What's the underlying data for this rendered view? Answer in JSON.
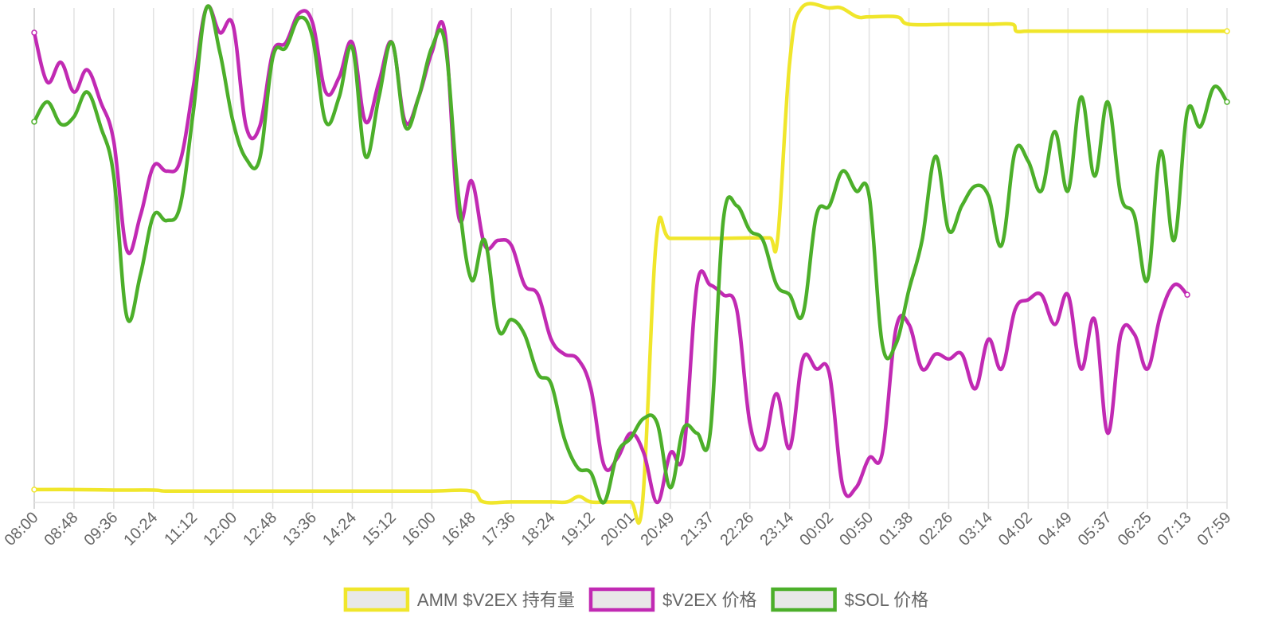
{
  "chart_data": {
    "type": "line",
    "title": "",
    "xlabel": "",
    "ylabel": "",
    "grid": true,
    "legend_position": "bottom",
    "y_axis_labels_shown": false,
    "x_tick_labels": [
      "08:00",
      "08:48",
      "09:36",
      "10:24",
      "11:12",
      "12:00",
      "12:48",
      "13:36",
      "14:24",
      "15:12",
      "16:00",
      "16:48",
      "17:36",
      "18:24",
      "19:12",
      "20:01",
      "20:49",
      "21:37",
      "22:26",
      "23:14",
      "00:02",
      "00:50",
      "01:38",
      "02:26",
      "03:14",
      "04:02",
      "04:49",
      "05:37",
      "06:25",
      "07:13",
      "07:59"
    ],
    "x_range": [
      0,
      30
    ],
    "y_range": [
      0,
      100
    ],
    "series": [
      {
        "name": "AMM $V2EX 持有量",
        "color": "#f0e62b",
        "points": [
          [
            0,
            2.6
          ],
          [
            1,
            2.6
          ],
          [
            2,
            2.5
          ],
          [
            3,
            2.5
          ],
          [
            3.3,
            2.3
          ],
          [
            4,
            2.3
          ],
          [
            5,
            2.3
          ],
          [
            6,
            2.3
          ],
          [
            7,
            2.3
          ],
          [
            8,
            2.3
          ],
          [
            9,
            2.3
          ],
          [
            10,
            2.3
          ],
          [
            11,
            2.3
          ],
          [
            11.3,
            0.1
          ],
          [
            12,
            0.1
          ],
          [
            13,
            0.1
          ],
          [
            13.4,
            0.1
          ],
          [
            13.7,
            1.2
          ],
          [
            14,
            0.1
          ],
          [
            14.5,
            0.1
          ],
          [
            15,
            0.1
          ],
          [
            15.3,
            0.1
          ],
          [
            15.65,
            53.4
          ],
          [
            16,
            53.4
          ],
          [
            17,
            53.4
          ],
          [
            17.3,
            53.4
          ],
          [
            18,
            53.5
          ],
          [
            18.5,
            53.5
          ],
          [
            18.7,
            53.5
          ],
          [
            19,
            89
          ],
          [
            19.3,
            100
          ],
          [
            20,
            100
          ],
          [
            20.3,
            100
          ],
          [
            20.7,
            98.2
          ],
          [
            21,
            98.2
          ],
          [
            21.7,
            98.2
          ],
          [
            22,
            96.7
          ],
          [
            23,
            96.7
          ],
          [
            24,
            96.7
          ],
          [
            24.6,
            96.7
          ],
          [
            24.7,
            95.3
          ],
          [
            25,
            95.3
          ],
          [
            26,
            95.3
          ],
          [
            27,
            95.3
          ],
          [
            28,
            95.3
          ],
          [
            29,
            95.3
          ],
          [
            30,
            95.3
          ]
        ]
      },
      {
        "name": "$V2EX 价格",
        "color": "#c12ab3",
        "points": [
          [
            0,
            95
          ],
          [
            0.33,
            85
          ],
          [
            0.67,
            89
          ],
          [
            1,
            83
          ],
          [
            1.33,
            87.5
          ],
          [
            1.67,
            81
          ],
          [
            2,
            73
          ],
          [
            2.33,
            51
          ],
          [
            2.67,
            58
          ],
          [
            3,
            68
          ],
          [
            3.33,
            67
          ],
          [
            3.67,
            69
          ],
          [
            4,
            84
          ],
          [
            4.33,
            100
          ],
          [
            4.67,
            95
          ],
          [
            5,
            96.5
          ],
          [
            5.33,
            76
          ],
          [
            5.67,
            76
          ],
          [
            6,
            91
          ],
          [
            6.33,
            93
          ],
          [
            6.67,
            99
          ],
          [
            7,
            97
          ],
          [
            7.33,
            83
          ],
          [
            7.67,
            86
          ],
          [
            8,
            93
          ],
          [
            8.33,
            77
          ],
          [
            8.67,
            85
          ],
          [
            9,
            93
          ],
          [
            9.33,
            77
          ],
          [
            9.67,
            82
          ],
          [
            10,
            91
          ],
          [
            10.33,
            95
          ],
          [
            10.67,
            58
          ],
          [
            11,
            65
          ],
          [
            11.33,
            52
          ],
          [
            11.67,
            53
          ],
          [
            12,
            52
          ],
          [
            12.33,
            44
          ],
          [
            12.67,
            42
          ],
          [
            13,
            33
          ],
          [
            13.33,
            30
          ],
          [
            13.67,
            29
          ],
          [
            14,
            23
          ],
          [
            14.33,
            7.5
          ],
          [
            14.67,
            9
          ],
          [
            15,
            14
          ],
          [
            15.33,
            10
          ],
          [
            15.67,
            0
          ],
          [
            16,
            10
          ],
          [
            16.33,
            10
          ],
          [
            16.67,
            44
          ],
          [
            17,
            44
          ],
          [
            17.33,
            42
          ],
          [
            17.67,
            39
          ],
          [
            18,
            16
          ],
          [
            18.33,
            11
          ],
          [
            18.67,
            22
          ],
          [
            19,
            11
          ],
          [
            19.33,
            29
          ],
          [
            19.67,
            27
          ],
          [
            20,
            26
          ],
          [
            20.33,
            3.5
          ],
          [
            20.67,
            3
          ],
          [
            21,
            9
          ],
          [
            21.33,
            10
          ],
          [
            21.67,
            35
          ],
          [
            22,
            36
          ],
          [
            22.33,
            27
          ],
          [
            22.67,
            30
          ],
          [
            23,
            29
          ],
          [
            23.33,
            30
          ],
          [
            23.67,
            23
          ],
          [
            24,
            33
          ],
          [
            24.33,
            27
          ],
          [
            24.67,
            39
          ],
          [
            25,
            41
          ],
          [
            25.33,
            42
          ],
          [
            25.67,
            36
          ],
          [
            26,
            42
          ],
          [
            26.33,
            27
          ],
          [
            26.67,
            37
          ],
          [
            27,
            14
          ],
          [
            27.33,
            34
          ],
          [
            27.67,
            34
          ],
          [
            28,
            27
          ],
          [
            28.33,
            38
          ],
          [
            28.67,
            44
          ],
          [
            29,
            42
          ]
        ]
      },
      {
        "name": "$SOL 价格",
        "color": "#4caf2a",
        "points": [
          [
            0,
            77
          ],
          [
            0.33,
            81
          ],
          [
            0.67,
            76.5
          ],
          [
            1,
            78
          ],
          [
            1.33,
            83
          ],
          [
            1.67,
            76
          ],
          [
            2,
            66
          ],
          [
            2.33,
            37.5
          ],
          [
            2.67,
            46
          ],
          [
            3,
            58
          ],
          [
            3.33,
            57
          ],
          [
            3.67,
            60
          ],
          [
            4,
            79
          ],
          [
            4.33,
            100
          ],
          [
            4.67,
            91
          ],
          [
            5,
            77
          ],
          [
            5.33,
            69.5
          ],
          [
            5.67,
            69.5
          ],
          [
            6,
            90
          ],
          [
            6.33,
            92
          ],
          [
            6.67,
            98
          ],
          [
            7,
            94
          ],
          [
            7.33,
            77
          ],
          [
            7.67,
            82
          ],
          [
            8,
            92
          ],
          [
            8.33,
            70
          ],
          [
            8.67,
            82
          ],
          [
            9,
            93
          ],
          [
            9.33,
            76
          ],
          [
            9.67,
            82
          ],
          [
            10,
            92
          ],
          [
            10.33,
            93
          ],
          [
            10.67,
            62
          ],
          [
            11,
            45
          ],
          [
            11.33,
            53
          ],
          [
            11.67,
            35
          ],
          [
            12,
            37
          ],
          [
            12.33,
            34
          ],
          [
            12.67,
            26
          ],
          [
            13,
            24
          ],
          [
            13.33,
            13
          ],
          [
            13.67,
            7
          ],
          [
            14,
            6
          ],
          [
            14.33,
            0
          ],
          [
            14.67,
            10
          ],
          [
            15,
            13
          ],
          [
            15.33,
            17
          ],
          [
            15.67,
            16
          ],
          [
            16,
            3
          ],
          [
            16.33,
            15
          ],
          [
            16.67,
            14
          ],
          [
            17,
            14
          ],
          [
            17.33,
            57
          ],
          [
            17.67,
            60
          ],
          [
            18,
            55
          ],
          [
            18.33,
            53
          ],
          [
            18.67,
            44
          ],
          [
            19,
            42
          ],
          [
            19.33,
            38
          ],
          [
            19.67,
            58
          ],
          [
            20,
            60
          ],
          [
            20.33,
            67
          ],
          [
            20.67,
            63
          ],
          [
            21,
            62
          ],
          [
            21.33,
            32
          ],
          [
            21.67,
            32
          ],
          [
            22,
            43
          ],
          [
            22.33,
            53
          ],
          [
            22.67,
            70
          ],
          [
            23,
            55
          ],
          [
            23.33,
            60
          ],
          [
            23.67,
            64
          ],
          [
            24,
            62
          ],
          [
            24.33,
            52
          ],
          [
            24.67,
            71
          ],
          [
            25,
            69
          ],
          [
            25.33,
            63
          ],
          [
            25.67,
            75
          ],
          [
            26,
            63
          ],
          [
            26.33,
            82
          ],
          [
            26.67,
            66
          ],
          [
            27,
            81
          ],
          [
            27.33,
            62
          ],
          [
            27.67,
            58
          ],
          [
            28,
            45
          ],
          [
            28.33,
            71
          ],
          [
            28.67,
            53
          ],
          [
            29,
            79
          ],
          [
            29.33,
            76
          ],
          [
            29.67,
            84
          ],
          [
            30,
            81
          ]
        ]
      }
    ]
  }
}
